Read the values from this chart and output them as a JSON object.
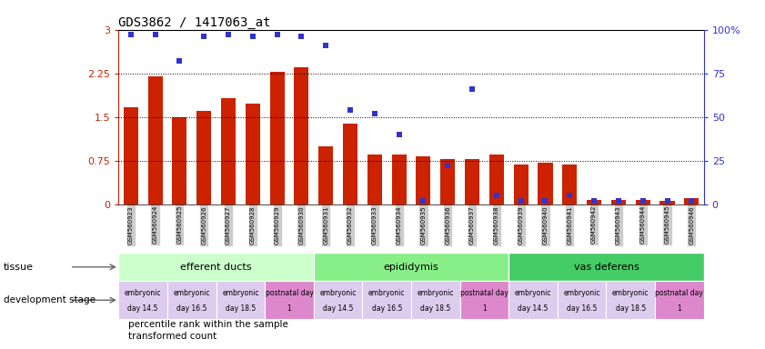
{
  "title": "GDS3862 / 1417063_at",
  "samples": [
    "GSM560923",
    "GSM560924",
    "GSM560925",
    "GSM560926",
    "GSM560927",
    "GSM560928",
    "GSM560929",
    "GSM560930",
    "GSM560931",
    "GSM560932",
    "GSM560933",
    "GSM560934",
    "GSM560935",
    "GSM560936",
    "GSM560937",
    "GSM560938",
    "GSM560939",
    "GSM560940",
    "GSM560941",
    "GSM560942",
    "GSM560943",
    "GSM560944",
    "GSM560945",
    "GSM560946"
  ],
  "bar_heights": [
    1.67,
    2.2,
    1.5,
    1.6,
    1.83,
    1.73,
    2.27,
    2.35,
    1.0,
    1.38,
    0.85,
    0.85,
    0.82,
    0.78,
    0.78,
    0.85,
    0.68,
    0.72,
    0.68,
    0.08,
    0.08,
    0.08,
    0.05,
    0.1
  ],
  "percentile_ranks": [
    97,
    97,
    82,
    96,
    97,
    96,
    97,
    96,
    91,
    54,
    52,
    40,
    2,
    22,
    66,
    5,
    2,
    2,
    5,
    2,
    2,
    2,
    2,
    2
  ],
  "ylim_left": [
    0,
    3
  ],
  "ylim_right": [
    0,
    100
  ],
  "yticks_left": [
    0,
    0.75,
    1.5,
    2.25,
    3
  ],
  "yticks_right": [
    0,
    25,
    50,
    75,
    100
  ],
  "bar_color": "#cc2200",
  "square_color": "#3333cc",
  "bg_main": "#ffffff",
  "tissue_groups": [
    {
      "label": "efferent ducts",
      "start": 0,
      "end": 7,
      "color": "#ccffcc"
    },
    {
      "label": "epididymis",
      "start": 8,
      "end": 15,
      "color": "#88ee88"
    },
    {
      "label": "vas deferens",
      "start": 16,
      "end": 23,
      "color": "#44cc66"
    }
  ],
  "dev_stages": [
    {
      "label": "embryonic\nday 14.5",
      "start": 0,
      "end": 1,
      "postnatal": false
    },
    {
      "label": "embryonic\nday 16.5",
      "start": 2,
      "end": 3,
      "postnatal": false
    },
    {
      "label": "embryonic\nday 18.5",
      "start": 4,
      "end": 5,
      "postnatal": false
    },
    {
      "label": "postnatal day\n1",
      "start": 6,
      "end": 7,
      "postnatal": true
    },
    {
      "label": "embryonic\nday 14.5",
      "start": 8,
      "end": 9,
      "postnatal": false
    },
    {
      "label": "embryonic\nday 16.5",
      "start": 10,
      "end": 11,
      "postnatal": false
    },
    {
      "label": "embryonic\nday 18.5",
      "start": 12,
      "end": 13,
      "postnatal": false
    },
    {
      "label": "postnatal day\n1",
      "start": 14,
      "end": 15,
      "postnatal": true
    },
    {
      "label": "embryonic\nday 14.5",
      "start": 16,
      "end": 17,
      "postnatal": false
    },
    {
      "label": "embryonic\nday 16.5",
      "start": 18,
      "end": 19,
      "postnatal": false
    },
    {
      "label": "embryonic\nday 18.5",
      "start": 20,
      "end": 21,
      "postnatal": false
    },
    {
      "label": "postnatal day\n1",
      "start": 22,
      "end": 23,
      "postnatal": true
    }
  ],
  "dev_color_embryonic": "#ddccee",
  "dev_color_postnatal": "#dd88cc",
  "xtick_bg": "#cccccc",
  "legend_bar_label": "transformed count",
  "legend_sq_label": "percentile rank within the sample"
}
